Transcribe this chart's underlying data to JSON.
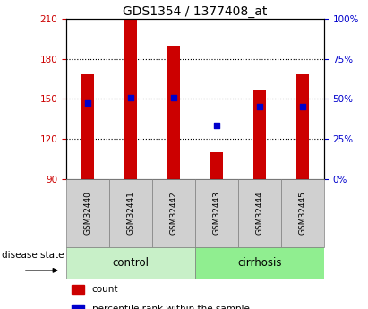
{
  "title": "GDS1354 / 1377408_at",
  "samples": [
    "GSM32440",
    "GSM32441",
    "GSM32442",
    "GSM32443",
    "GSM32444",
    "GSM32445"
  ],
  "groups": [
    "control",
    "control",
    "control",
    "cirrhosis",
    "cirrhosis",
    "cirrhosis"
  ],
  "bar_bottoms": [
    90,
    90,
    90,
    90,
    90,
    90
  ],
  "bar_tops": [
    168,
    210,
    190,
    110,
    157,
    168
  ],
  "percentile_values": [
    147,
    151,
    151,
    130,
    144,
    144
  ],
  "ylim_left": [
    90,
    210
  ],
  "ylim_right": [
    0,
    100
  ],
  "yticks_left": [
    90,
    120,
    150,
    180,
    210
  ],
  "yticks_right": [
    0,
    25,
    50,
    75,
    100
  ],
  "grid_yticks": [
    120,
    150,
    180
  ],
  "bar_color": "#cc0000",
  "dot_color": "#0000cc",
  "control_color": "#c8f0c8",
  "cirrhosis_color": "#90ee90",
  "sample_box_color": "#d0d0d0",
  "tick_label_color_left": "#cc0000",
  "tick_label_color_right": "#0000cc",
  "legend_items": [
    "count",
    "percentile rank within the sample"
  ],
  "disease_state_label": "disease state",
  "figsize": [
    4.11,
    3.45
  ],
  "dpi": 100,
  "bar_width": 0.3
}
